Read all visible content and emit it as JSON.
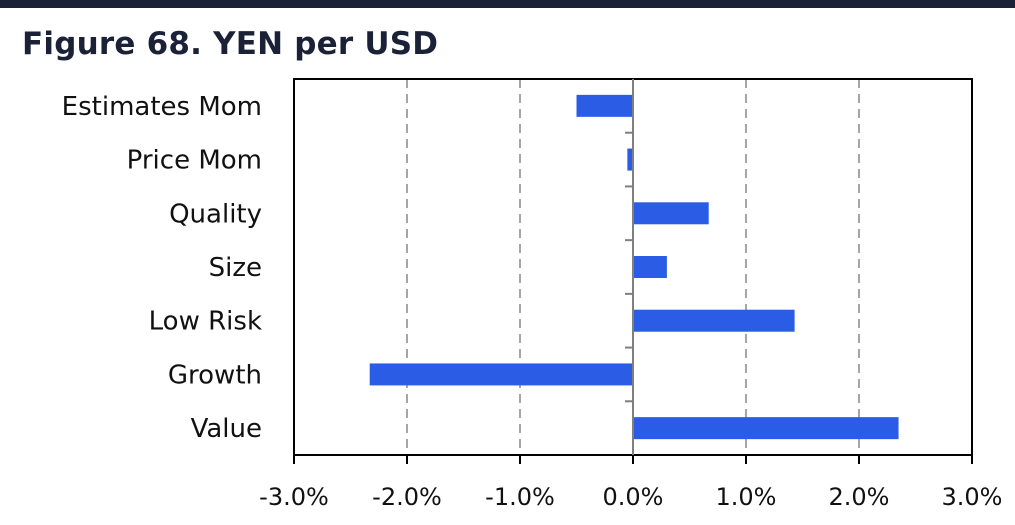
{
  "title": "Figure 68. YEN per USD",
  "chart_data": {
    "type": "bar",
    "orientation": "horizontal",
    "title": "Figure 68. YEN per USD",
    "categories": [
      "Estimates Mom",
      "Price Mom",
      "Quality",
      "Size",
      "Low Risk",
      "Growth",
      "Value"
    ],
    "values": [
      -0.5,
      -0.05,
      0.67,
      0.3,
      1.43,
      -2.33,
      2.35
    ],
    "xlim": [
      -3.0,
      3.0
    ],
    "xticks": [
      -3.0,
      -2.0,
      -1.0,
      0.0,
      1.0,
      2.0,
      3.0
    ],
    "xtick_labels": [
      "-3.0%",
      "-2.0%",
      "-1.0%",
      "0.0%",
      "1.0%",
      "2.0%",
      "3.0%"
    ],
    "xlabel": "",
    "ylabel": "",
    "grid": "vertical dashed",
    "legend": "none",
    "bar_color": "#2b5ce6",
    "gridline_color": "#a6a6a6"
  }
}
